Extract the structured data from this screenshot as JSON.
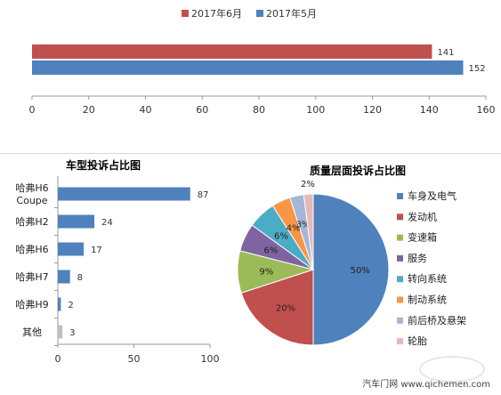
{
  "chart_data": [
    {
      "type": "bar",
      "orientation": "horizontal",
      "title": "",
      "categories": [
        ""
      ],
      "series": [
        {
          "name": "2017年6月",
          "values": [
            141
          ],
          "color": "#c0504d"
        },
        {
          "name": "2017年5月",
          "values": [
            152
          ],
          "color": "#4f81bd"
        }
      ],
      "xlim": [
        0,
        160
      ],
      "xticks": [
        "0",
        "20",
        "40",
        "60",
        "80",
        "100",
        "120",
        "140",
        "160"
      ],
      "legend": "top",
      "grid": false
    },
    {
      "type": "bar",
      "orientation": "horizontal",
      "title": "车型投诉占比图",
      "categories": [
        "哈弗H6 Coupe",
        "哈弗H2",
        "哈弗H6",
        "哈弗H7",
        "哈弗H9",
        "其他"
      ],
      "values": [
        87,
        24,
        17,
        8,
        2,
        3
      ],
      "colors": [
        "#4f81bd",
        "#4f81bd",
        "#4f81bd",
        "#4f81bd",
        "#4f81bd",
        "#bfbfbf"
      ],
      "xlim": [
        0,
        100
      ],
      "xticks": [
        "0",
        "50",
        "100"
      ],
      "grid": false
    },
    {
      "type": "pie",
      "title": "质量层面投诉占比图",
      "labels": [
        "车身及电气",
        "发动机",
        "变速箱",
        "服务",
        "转向系统",
        "制动系统",
        "前后桥及悬架",
        "轮胎"
      ],
      "values": [
        50,
        20,
        9,
        6,
        6,
        4,
        3,
        2
      ],
      "value_labels": [
        "50%",
        "20%",
        "9%",
        "6%",
        "6%",
        "4%",
        "3%",
        "2%"
      ],
      "colors": [
        "#4f81bd",
        "#c0504d",
        "#9bbb59",
        "#8064a2",
        "#4bacc6",
        "#f79646",
        "#a5b6d6",
        "#e6b9b8"
      ],
      "legend": "right"
    }
  ],
  "footer": {
    "source_text": "汽车门网  www.qichemen.com"
  }
}
